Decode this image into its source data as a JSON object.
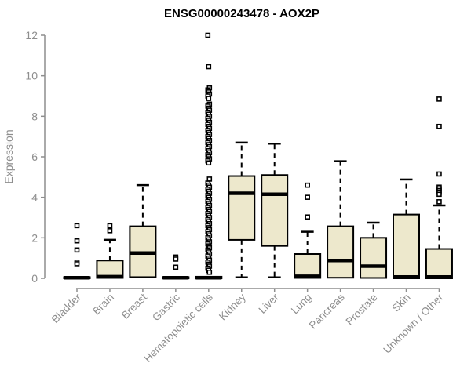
{
  "chart_data": {
    "type": "boxplot",
    "title": "ENSG00000243478 - AOX2P",
    "xlabel": "",
    "ylabel": "Expression",
    "ylim": [
      0,
      12
    ],
    "yticks": [
      0,
      2,
      4,
      6,
      8,
      10,
      12
    ],
    "grid": false,
    "legend": false,
    "categories": [
      "Bladder",
      "Brain",
      "Breast",
      "Gastric",
      "Hematopoietic cells",
      "Kidney",
      "Liver",
      "Lung",
      "Pancreas",
      "Prostate",
      "Skin",
      "Unknown / Other"
    ],
    "boxes": [
      {
        "label": "Bladder",
        "low": 0,
        "q1": 0,
        "median": 0.03,
        "q3": 0.06,
        "high": 0.06,
        "outliers": [
          2.6,
          1.85,
          1.4,
          0.8,
          0.72
        ]
      },
      {
        "label": "Brain",
        "low": 0.02,
        "q1": 0.02,
        "median": 0.08,
        "q3": 0.88,
        "high": 1.9,
        "outliers": [
          2.6,
          2.35
        ]
      },
      {
        "label": "Breast",
        "low": 0.06,
        "q1": 0.06,
        "median": 1.25,
        "q3": 2.57,
        "high": 4.6,
        "outliers": []
      },
      {
        "label": "Gastric",
        "low": 0,
        "q1": 0,
        "median": 0.03,
        "q3": 0.06,
        "high": 0.06,
        "outliers": [
          1.05,
          0.95,
          0.55
        ]
      },
      {
        "label": "Hematopoietic cells",
        "low": 0,
        "q1": 0,
        "median": 0.03,
        "q3": 0.08,
        "high": 0.08,
        "outliers": [
          12.0,
          10.45,
          9.4,
          9.3,
          9.2,
          9.1,
          9.0,
          8.88,
          8.6,
          8.5,
          8.4,
          8.3,
          8.2,
          8.1,
          8.0,
          7.9,
          7.8,
          7.7,
          7.6,
          7.5,
          7.4,
          7.3,
          7.2,
          7.1,
          7.0,
          6.9,
          6.8,
          6.7,
          6.6,
          6.5,
          6.4,
          6.3,
          6.2,
          6.1,
          6.0,
          5.9,
          5.8,
          5.7,
          4.9,
          4.7,
          4.6,
          4.5,
          4.4,
          4.3,
          4.2,
          4.1,
          4.0,
          3.9,
          3.8,
          3.7,
          3.6,
          3.5,
          3.4,
          3.3,
          3.2,
          3.1,
          3.0,
          2.9,
          2.8,
          2.7,
          2.6,
          2.5,
          2.4,
          2.3,
          2.2,
          2.1,
          2.0,
          1.9,
          1.8,
          1.7,
          1.6,
          1.5,
          1.4,
          1.3,
          1.2,
          1.1,
          1.0,
          0.9,
          0.8,
          0.7,
          0.6,
          0.5,
          0.4,
          0.3
        ]
      },
      {
        "label": "Kidney",
        "low": 0.05,
        "q1": 1.9,
        "median": 4.2,
        "q3": 5.05,
        "high": 6.7,
        "outliers": []
      },
      {
        "label": "Liver",
        "low": 0.05,
        "q1": 1.6,
        "median": 4.15,
        "q3": 5.1,
        "high": 6.65,
        "outliers": []
      },
      {
        "label": "Lung",
        "low": 0.02,
        "q1": 0.02,
        "median": 0.1,
        "q3": 1.2,
        "high": 2.3,
        "outliers": [
          4.6,
          4.0,
          3.03
        ]
      },
      {
        "label": "Pancreas",
        "low": 0.03,
        "q1": 0.03,
        "median": 0.88,
        "q3": 2.57,
        "high": 5.78,
        "outliers": []
      },
      {
        "label": "Prostate",
        "low": 0.02,
        "q1": 0.02,
        "median": 0.6,
        "q3": 2.0,
        "high": 2.75,
        "outliers": []
      },
      {
        "label": "Skin",
        "low": 0,
        "q1": 0,
        "median": 0.07,
        "q3": 3.15,
        "high": 4.88,
        "outliers": []
      },
      {
        "label": "Unknown / Other",
        "low": 0,
        "q1": 0,
        "median": 0.07,
        "q3": 1.45,
        "high": 3.6,
        "outliers": [
          8.85,
          7.5,
          5.15,
          4.5,
          4.42,
          4.33,
          4.25,
          4.15,
          3.78
        ]
      }
    ],
    "colors": {
      "box_fill": "#ede8cc",
      "box_border": "#000000",
      "median": "#000000",
      "whisker": "#000000",
      "outlier_fill": "#ffffff",
      "outlier_border": "#000000",
      "axis": "#8e8e8e",
      "tick_label": "#8e8e8e",
      "title": "#000000",
      "background": "#ffffff"
    }
  }
}
